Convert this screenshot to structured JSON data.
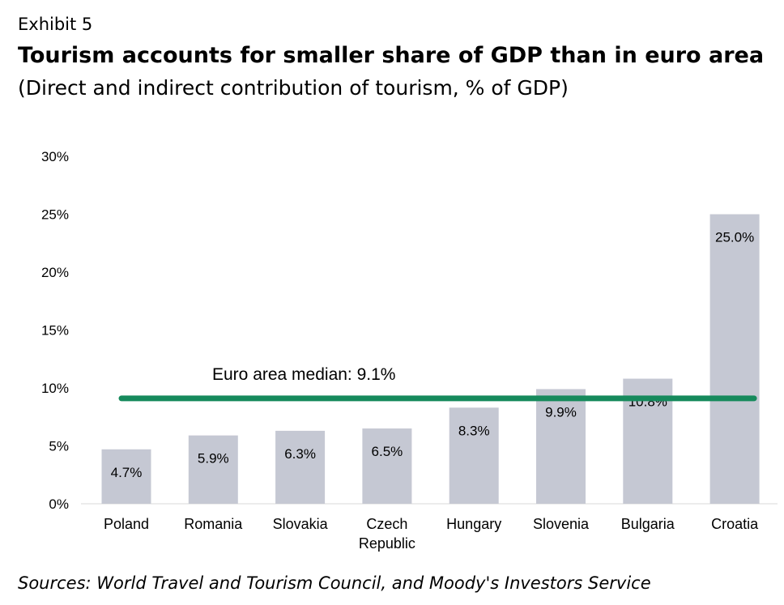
{
  "header": {
    "exhibit": "Exhibit 5",
    "title": "Tourism accounts for smaller share of GDP than in euro area",
    "subtitle": "(Direct and indirect contribution of tourism, % of GDP)"
  },
  "footer": {
    "source": "Sources: World Travel and Tourism Council, and Moody's Investors Service"
  },
  "colors": {
    "bar": "#c5c8d3",
    "median_line": "#168a5c",
    "text": "#000000"
  },
  "chart_data": {
    "type": "bar",
    "categories": [
      "Poland",
      "Romania",
      "Slovakia",
      "Czech Republic",
      "Hungary",
      "Slovenia",
      "Bulgaria",
      "Croatia"
    ],
    "values": [
      4.7,
      5.9,
      6.3,
      6.5,
      8.3,
      9.9,
      10.8,
      25.0
    ],
    "value_labels": [
      "4.7%",
      "5.9%",
      "6.3%",
      "6.5%",
      "8.3%",
      "9.9%",
      "10.8%",
      "25.0%"
    ],
    "ylim": [
      0,
      30
    ],
    "yticks": [
      0,
      5,
      10,
      15,
      20,
      25,
      30
    ],
    "ytick_labels": [
      "0%",
      "5%",
      "10%",
      "15%",
      "20%",
      "25%",
      "30%"
    ],
    "reference_line": {
      "label": "Euro area median: 9.1%",
      "value": 9.1
    },
    "grid": false,
    "legend": "none"
  }
}
